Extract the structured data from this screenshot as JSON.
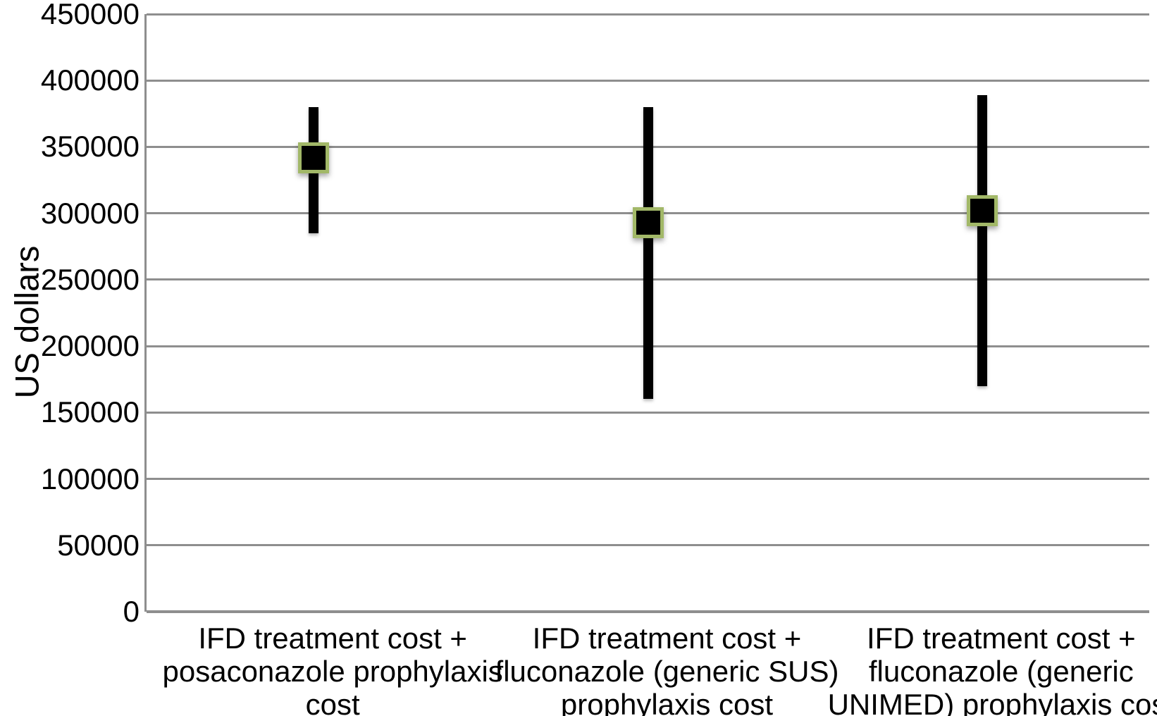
{
  "chart_data": {
    "type": "stock-hilo",
    "title": "",
    "ylabel": "US dollars",
    "xlabel": "",
    "ylim": [
      0,
      450000
    ],
    "ytick_step": 50000,
    "grid": "horizontal gridlines every 50000, gray",
    "legend_position": "none",
    "categories": [
      {
        "label": "IFD treatment cost + posaconazole prophylaxis cost",
        "lines": [
          "IFD treatment cost +",
          "posaconazole prophylaxis",
          "cost"
        ]
      },
      {
        "label": "IFD treatment cost + fluconazole (generic SUS) prophylaxis cost",
        "lines": [
          "IFD treatment cost +",
          "fluconazole (generic SUS)",
          "prophylaxis cost"
        ]
      },
      {
        "label": "IFD treatment cost + fluconazole (generic UNIMED) prophylaxis cost",
        "lines": [
          "IFD treatment cost +",
          "fluconazole (generic",
          "UNIMED) prophylaxis cost"
        ]
      }
    ],
    "series": [
      {
        "category_index": 0,
        "low": 285000,
        "mean": 342000,
        "high": 380000
      },
      {
        "category_index": 1,
        "low": 160000,
        "mean": 293000,
        "high": 380000
      },
      {
        "category_index": 2,
        "low": 170000,
        "mean": 302000,
        "high": 389000
      }
    ],
    "colors": {
      "bar": "#000000",
      "marker_fill": "#000000",
      "marker_border": "#a2b868",
      "gridline": "#8e8e8e",
      "axis_line": "#8e8e8e",
      "text": "#000000",
      "background": "#ffffff"
    }
  }
}
